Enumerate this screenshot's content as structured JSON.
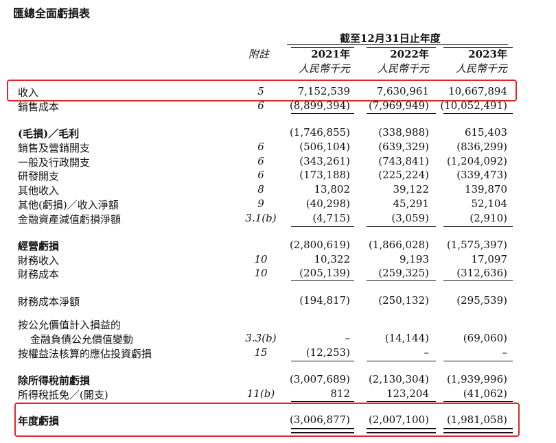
{
  "title": "匯總全面虧損表",
  "period_header": "截至12月31日止年度",
  "note_header": "附註",
  "years": [
    {
      "year": "2021年",
      "currency": "人民幣千元"
    },
    {
      "year": "2022年",
      "currency": "人民幣千元"
    },
    {
      "year": "2023年",
      "currency": "人民幣千元"
    }
  ],
  "rows": [
    {
      "label": "收入",
      "note": "5",
      "v": [
        "7,152,539",
        "7,630,961",
        "10,667,894"
      ]
    },
    {
      "label": "銷售成本",
      "note": "6",
      "v": [
        "(8,899,394)",
        "(7,969,949)",
        "(10,052,491)"
      ]
    },
    {
      "label": "(毛損)／毛利",
      "note": "",
      "v": [
        "(1,746,855)",
        "(338,988)",
        "615,403"
      ]
    },
    {
      "label": "銷售及營銷開支",
      "note": "6",
      "v": [
        "(506,104)",
        "(639,329)",
        "(836,299)"
      ]
    },
    {
      "label": "一般及行政開支",
      "note": "6",
      "v": [
        "(343,261)",
        "(743,841)",
        "(1,204,092)"
      ]
    },
    {
      "label": "研發開支",
      "note": "6",
      "v": [
        "(173,188)",
        "(225,224)",
        "(339,473)"
      ]
    },
    {
      "label": "其他收入",
      "note": "8",
      "v": [
        "13,802",
        "39,122",
        "139,870"
      ]
    },
    {
      "label": "其他(虧損)／收入淨額",
      "note": "9",
      "v": [
        "(40,298)",
        "45,291",
        "52,104"
      ]
    },
    {
      "label": "金融資產減值虧損淨額",
      "note": "3.1(b)",
      "v": [
        "(4,715)",
        "(3,059)",
        "(2,910)"
      ]
    },
    {
      "label": "經營虧損",
      "note": "",
      "v": [
        "(2,800,619)",
        "(1,866,028)",
        "(1,575,397)"
      ]
    },
    {
      "label": "財務收入",
      "note": "10",
      "v": [
        "10,322",
        "9,193",
        "17,097"
      ]
    },
    {
      "label": "財務成本",
      "note": "10",
      "v": [
        "(205,139)",
        "(259,325)",
        "(312,636)"
      ]
    },
    {
      "label": "財務成本淨額",
      "note": "",
      "v": [
        "(194,817)",
        "(250,132)",
        "(295,539)"
      ]
    },
    {
      "label": "按公允價值計入損益的",
      "note": "",
      "v": [
        "",
        "",
        ""
      ]
    },
    {
      "label": "金融負債公允價值變動",
      "note": "3.3(b)",
      "v": [
        "–",
        "(14,144)",
        "(69,060)"
      ]
    },
    {
      "label": "按權益法核算的應佔投資虧損",
      "note": "15",
      "v": [
        "(12,253)",
        "–",
        "–"
      ]
    },
    {
      "label": "除所得稅前虧損",
      "note": "",
      "v": [
        "(3,007,689)",
        "(2,130,304)",
        "(1,939,996)"
      ]
    },
    {
      "label": "所得稅抵免／(開支)",
      "note": "11(b)",
      "v": [
        "812",
        "123,204",
        "(41,062)"
      ]
    },
    {
      "label": "年度虧損",
      "note": "",
      "v": [
        "(3,006,877)",
        "(2,007,100)",
        "(1,981,058)"
      ]
    }
  ],
  "highlight_color": "#e0262b"
}
